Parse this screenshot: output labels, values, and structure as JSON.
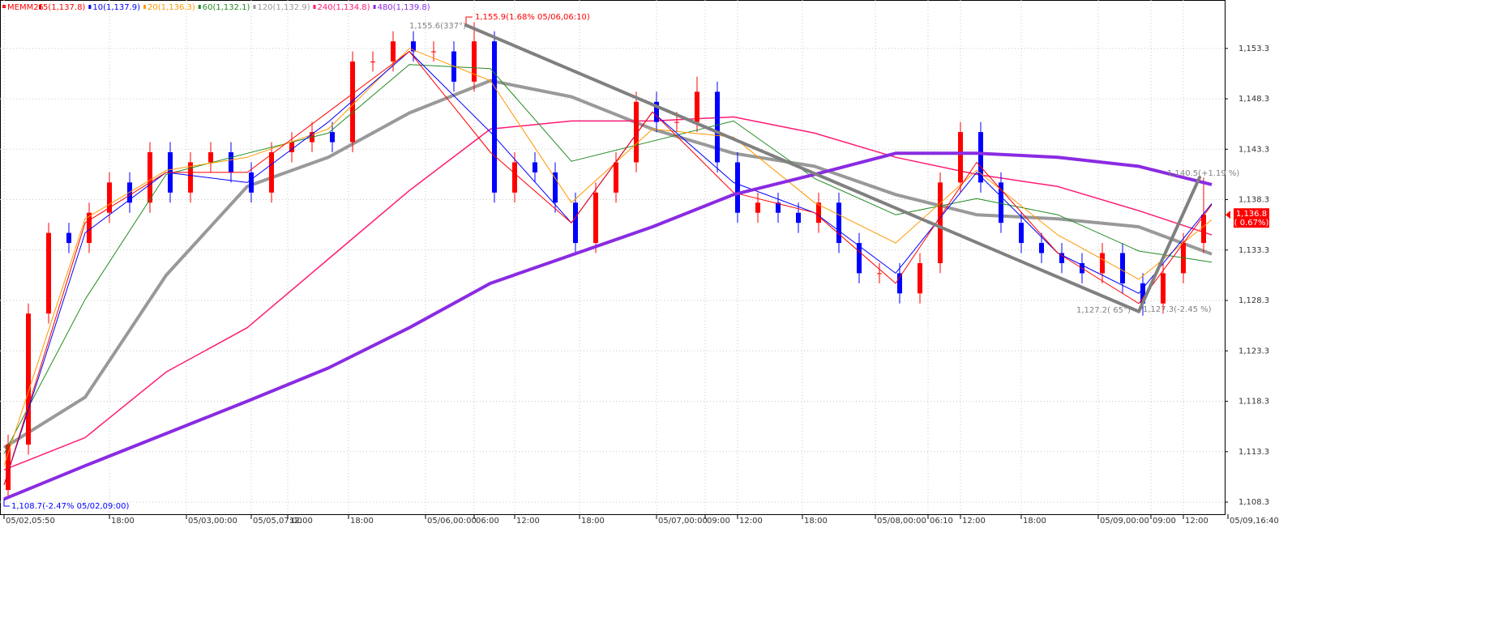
{
  "chart_data": {
    "type": "candlestick",
    "title": "MEMM25",
    "xlim": [
      -1,
      301
    ],
    "ylim": [
      1107.1,
      1158.1
    ],
    "grid": true,
    "up_color": "#ff0000",
    "down_color": "#0000ff",
    "yticks": [
      {
        "value": 1108.3,
        "label": "1,108.3"
      },
      {
        "value": 1113.3,
        "label": "1,113.3"
      },
      {
        "value": 1118.3,
        "label": "1,118.3"
      },
      {
        "value": 1123.3,
        "label": "1,123.3"
      },
      {
        "value": 1128.3,
        "label": "1,128.3"
      },
      {
        "value": 1133.3,
        "label": "1,133.3"
      },
      {
        "value": 1138.3,
        "label": "1,138.3"
      },
      {
        "value": 1143.3,
        "label": "1,143.3"
      },
      {
        "value": 1148.3,
        "label": "1,148.3"
      },
      {
        "value": 1153.3,
        "label": "1,153.3"
      }
    ],
    "xticks": [
      {
        "value": 0,
        "label": "05/02,05:50"
      },
      {
        "value": 26,
        "label": "18:00"
      },
      {
        "value": 45,
        "label": "05/03,00:00"
      },
      {
        "value": 61,
        "label": "05/05,07:00"
      },
      {
        "value": 70,
        "label": "12:00"
      },
      {
        "value": 85,
        "label": "18:00"
      },
      {
        "value": 104,
        "label": "05/06,00:00"
      },
      {
        "value": 116,
        "label": "06:00"
      },
      {
        "value": 126,
        "label": "12:00"
      },
      {
        "value": 142,
        "label": "18:00"
      },
      {
        "value": 161,
        "label": "05/07,00:00"
      },
      {
        "value": 173,
        "label": "09:00"
      },
      {
        "value": 181,
        "label": "12:00"
      },
      {
        "value": 197,
        "label": "18:00"
      },
      {
        "value": 215,
        "label": "05/08,00:00"
      },
      {
        "value": 228,
        "label": "06:10"
      },
      {
        "value": 236,
        "label": "12:00"
      },
      {
        "value": 251,
        "label": "18:00"
      },
      {
        "value": 270,
        "label": "05/09,00:00"
      },
      {
        "value": 283,
        "label": "09:00"
      },
      {
        "value": 291,
        "label": "12:00"
      },
      {
        "value": 302,
        "label": "05/09,16:40"
      }
    ],
    "x": [
      1,
      6,
      11,
      16,
      21,
      26,
      31,
      36,
      41,
      46,
      51,
      56,
      61,
      66,
      71,
      76,
      81,
      86,
      91,
      96,
      101,
      106,
      111,
      116,
      121,
      126,
      131,
      136,
      141,
      146,
      151,
      156,
      161,
      166,
      171,
      176,
      181,
      186,
      191,
      196,
      201,
      206,
      211,
      216,
      221,
      226,
      231,
      236,
      241,
      246,
      251,
      256,
      261,
      266,
      271,
      276,
      281,
      286,
      291,
      296
    ],
    "open": [
      1109.5,
      1114,
      1127,
      1135,
      1134,
      1137,
      1140,
      1138,
      1143,
      1139,
      1142,
      1143,
      1141,
      1139,
      1143,
      1144,
      1145,
      1144,
      1152,
      1152,
      1154,
      1153,
      1153,
      1150,
      1154,
      1139,
      1142,
      1141,
      1138,
      1134,
      1139,
      1142,
      1148,
      1146,
      1146,
      1149,
      1142,
      1137,
      1138,
      1137,
      1136,
      1138,
      1134,
      1131,
      1131,
      1129,
      1132,
      1140,
      1145,
      1140,
      1136,
      1134,
      1133,
      1132,
      1131,
      1133,
      1130,
      1128,
      1131,
      1134
    ],
    "high": [
      1115,
      1128,
      1136,
      1136,
      1138,
      1141,
      1141,
      1144,
      1144,
      1143,
      1144,
      1144,
      1142,
      1144,
      1145,
      1146,
      1146,
      1153,
      1153,
      1155,
      1155,
      1154,
      1154,
      1155.9,
      1155,
      1143,
      1143,
      1142,
      1139,
      1140,
      1143,
      1149,
      1149,
      1147,
      1150.5,
      1150,
      1143,
      1139,
      1139,
      1138,
      1139,
      1139,
      1135,
      1132,
      1132,
      1133,
      1141,
      1146,
      1146,
      1141,
      1137,
      1135,
      1134,
      1133,
      1134,
      1134,
      1131,
      1132,
      1135,
      1140.5
    ],
    "low": [
      1108.7,
      1113,
      1126,
      1133,
      1133,
      1136,
      1137,
      1137,
      1138,
      1138,
      1141,
      1140,
      1138,
      1138,
      1142,
      1143,
      1143,
      1143,
      1151,
      1151,
      1152,
      1152,
      1149,
      1149,
      1138,
      1138,
      1140,
      1137,
      1133,
      1133,
      1138,
      1141,
      1145,
      1145,
      1145,
      1141,
      1136,
      1136,
      1136,
      1135,
      1135,
      1133,
      1130,
      1130,
      1128,
      1128,
      1131,
      1139,
      1139,
      1135,
      1133,
      1132,
      1131,
      1130,
      1130,
      1129,
      1126.8,
      1127,
      1130,
      1133
    ],
    "close": [
      1114,
      1127,
      1135,
      1134,
      1137,
      1140,
      1138,
      1143,
      1139,
      1142,
      1143,
      1141,
      1139,
      1143,
      1144,
      1145,
      1144,
      1152,
      1152,
      1154,
      1153,
      1153,
      1150,
      1154,
      1139,
      1142,
      1141,
      1138,
      1134,
      1139,
      1142,
      1148,
      1146,
      1146,
      1149,
      1142,
      1137,
      1138,
      1137,
      1136,
      1138,
      1134,
      1131,
      1131,
      1129,
      1132,
      1140,
      1145,
      1140,
      1136,
      1134,
      1133,
      1132,
      1131,
      1133,
      1130,
      1128,
      1131,
      1134,
      1136.8
    ],
    "series": [
      {
        "name": "5(1,137.8)",
        "color": "#ff0000",
        "x": [
          0,
          20,
          40,
          60,
          80,
          100,
          120,
          140,
          160,
          180,
          200,
          220,
          240,
          260,
          280,
          298
        ],
        "values": [
          1110,
          1136,
          1141,
          1141,
          1147,
          1153,
          1143,
          1136,
          1147,
          1139,
          1137,
          1130,
          1142,
          1133,
          1128,
          1137.8
        ]
      },
      {
        "name": "10(1,137.9)",
        "color": "#0000ff",
        "x": [
          0,
          20,
          40,
          60,
          80,
          100,
          120,
          140,
          160,
          180,
          200,
          220,
          240,
          260,
          280,
          298
        ],
        "values": [
          1110,
          1135,
          1141,
          1140,
          1146,
          1153,
          1145,
          1136,
          1147,
          1140,
          1137,
          1131,
          1141,
          1133,
          1129,
          1137.9
        ]
      },
      {
        "name": "20(1,136.3)",
        "color": "#ff9900",
        "x": [
          0,
          20,
          40,
          60,
          80,
          100,
          120,
          140,
          160,
          180,
          200,
          220,
          240,
          260,
          280,
          298
        ],
        "values": [
          1111.9,
          1136.4,
          1141.2,
          1142.5,
          1145.3,
          1153.3,
          1150.1,
          1138,
          1145.3,
          1144.5,
          1138,
          1134,
          1141.2,
          1134.8,
          1130.4,
          1136.3
        ]
      },
      {
        "name": "60(1,132.1)",
        "color": "#228b22",
        "x": [
          0,
          20,
          40,
          60,
          80,
          100,
          120,
          140,
          160,
          180,
          200,
          220,
          240,
          260,
          280,
          298
        ],
        "values": [
          1113.1,
          1128.4,
          1140.8,
          1142.9,
          1144.9,
          1151.7,
          1151.3,
          1142.1,
          1144.1,
          1146.1,
          1140.4,
          1136.8,
          1138.4,
          1136.8,
          1133.2,
          1132.1
        ]
      },
      {
        "name": "120(1,132.9)",
        "color": "#999999",
        "x": [
          0,
          20,
          40,
          60,
          80,
          100,
          120,
          140,
          160,
          180,
          200,
          220,
          240,
          260,
          280,
          298
        ],
        "values": [
          1113.7,
          1118.7,
          1130.8,
          1139.6,
          1142.5,
          1146.9,
          1150.1,
          1148.5,
          1145.3,
          1142.9,
          1141.6,
          1138.8,
          1136.8,
          1136.4,
          1135.6,
          1132.9
        ]
      },
      {
        "name": "240(1,134.8)",
        "color": "#ff1a75",
        "x": [
          0,
          20,
          40,
          60,
          80,
          100,
          120,
          140,
          160,
          180,
          200,
          220,
          240,
          260,
          280,
          298
        ],
        "values": [
          1111.5,
          1114.7,
          1121.2,
          1125.6,
          1132.4,
          1139.2,
          1145.3,
          1146.1,
          1146.1,
          1146.5,
          1144.9,
          1142.5,
          1140.8,
          1139.6,
          1137.2,
          1134.8
        ]
      },
      {
        "name": "480(1,139.8)",
        "color": "#8a2be2",
        "x": [
          0,
          20,
          40,
          60,
          80,
          100,
          120,
          140,
          160,
          180,
          200,
          220,
          240,
          260,
          280,
          298
        ],
        "values": [
          1108.6,
          1111.9,
          1115.1,
          1118.3,
          1121.6,
          1125.6,
          1130,
          1132.8,
          1135.6,
          1138.8,
          1140.8,
          1142.9,
          1142.9,
          1142.5,
          1141.6,
          1139.8
        ]
      }
    ],
    "trendlines": [
      {
        "color": "#808080",
        "x": [
          114,
          280
        ],
        "values": [
          1155.6,
          1127.2
        ]
      },
      {
        "color": "#808080",
        "x": [
          280,
          295
        ],
        "values": [
          1127.2,
          1140.5
        ]
      }
    ],
    "annotations": [
      {
        "text": "1,155.6(337°)",
        "color": "#808080"
      },
      {
        "text": "1,155.9(1.68% 05/06,06:10)",
        "color": "#ff0000"
      },
      {
        "text": "1,108.7(-2.47% 05/02,09:00)",
        "color": "#0000ff"
      },
      {
        "text": "1,127.2( 65°)",
        "color": "#808080"
      },
      {
        "text": "1,127.3(-2.45 %)",
        "color": "#808080"
      },
      {
        "text": "1,140.5(+1.19 %)",
        "color": "#808080"
      }
    ],
    "last_label": "1,136.8",
    "last_change": "( 0.67%)"
  }
}
